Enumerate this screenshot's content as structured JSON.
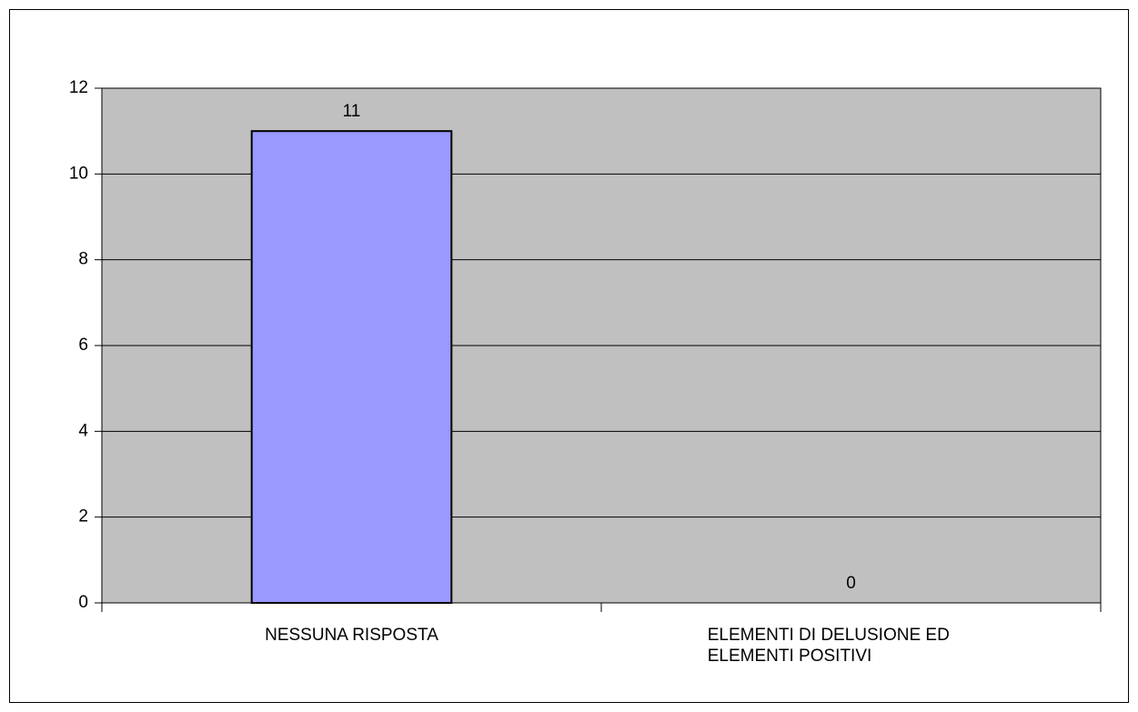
{
  "chart_data": {
    "type": "bar",
    "categories": [
      "NESSUNA RISPOSTA",
      "ELEMENTI DI DELUSIONE ED ELEMENTI POSITIVI"
    ],
    "values": [
      11,
      0
    ],
    "color": "#9999ff",
    "ylim": [
      0,
      12
    ],
    "yticks": [
      0,
      2,
      4,
      6,
      8,
      10,
      12
    ],
    "grid": true
  }
}
